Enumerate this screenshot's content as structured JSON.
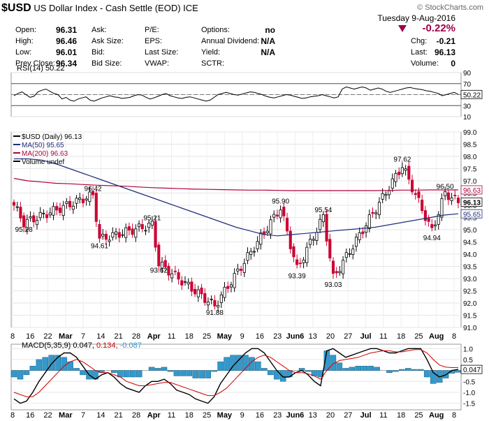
{
  "header": {
    "symbol": "$USD",
    "name": "US Dollar Index - Cash Settle (EOD)",
    "exchange": "ICE",
    "copyright": "© StockCharts.com",
    "date": "Tuesday  9-Aug-2016",
    "change_pct": "-0.22%",
    "quote": [
      {
        "label": "Open:",
        "value": "96.31"
      },
      {
        "label": "High:",
        "value": "96.46"
      },
      {
        "label": "Low:",
        "value": "96.01"
      },
      {
        "label": "Prev Close:",
        "value": "96.34"
      }
    ],
    "quote2": [
      "Ask:",
      "Ask Size:",
      "Bid:",
      "Bid Size:"
    ],
    "quote3": [
      "P/E:",
      "EPS:",
      "Last Size:",
      "VWAP:"
    ],
    "quote4": [
      {
        "label": "Options:",
        "value": "no"
      },
      {
        "label": "Annual Dividend:",
        "value": "N/A"
      },
      {
        "label": "Yield:",
        "value": "N/A"
      },
      {
        "label": "SCTR:",
        "value": ""
      }
    ],
    "quote5": [
      {
        "label": "Chg:",
        "value": "-0.21"
      },
      {
        "label": "Last:",
        "value": "96.13"
      },
      {
        "label": "Volume:",
        "value": "0"
      }
    ]
  },
  "colors": {
    "up": "#000000",
    "down": "#cc0033",
    "ma50": "#1f2d7a",
    "ma200": "#b0003a",
    "macd_hist": "#3399cc"
  },
  "chart_data": [
    {
      "type": "line",
      "name": "RSI(14)",
      "legend": "RSI(14) 50.22",
      "current": "50.22",
      "ylim": [
        10,
        90
      ],
      "ticks": [
        10,
        30,
        50,
        70,
        90
      ],
      "overbought": 70,
      "oversold": 30,
      "values": [
        48,
        52,
        55,
        50,
        45,
        47,
        55,
        58,
        60,
        56,
        52,
        50,
        42,
        45,
        40,
        38,
        42,
        44,
        46,
        40,
        38,
        41,
        44,
        46,
        48,
        46,
        45,
        43,
        44,
        45,
        48,
        50,
        49,
        45,
        42,
        44,
        47,
        50,
        52,
        48,
        46,
        44,
        43,
        45,
        46,
        44,
        42,
        40,
        38,
        40,
        45,
        50,
        52,
        54,
        52,
        50,
        49,
        51,
        53,
        55,
        54,
        52,
        50,
        47,
        45,
        44,
        46,
        48,
        50,
        49,
        47,
        45,
        43,
        44,
        46,
        47,
        48,
        50,
        48,
        46,
        44,
        46,
        60,
        64,
        62,
        60,
        62,
        64,
        62,
        58,
        60,
        62,
        60,
        56,
        54,
        56,
        58,
        60,
        62,
        63,
        61,
        60,
        59,
        57,
        56,
        54,
        52,
        48,
        50,
        52,
        54,
        50.22
      ]
    },
    {
      "type": "candlestick",
      "name": "$USD (Daily)",
      "legend": "$USD (Daily) 96.13",
      "ylim": [
        91,
        99
      ],
      "ticks": [
        91.0,
        91.5,
        92.0,
        92.5,
        93.0,
        93.5,
        94.0,
        94.5,
        95.0,
        95.5,
        96.0,
        96.5,
        97.0,
        97.5,
        98.0,
        98.5,
        99.0
      ],
      "x_labels": [
        "8",
        "16",
        "22",
        "Mar",
        "7",
        "14",
        "21",
        "28",
        "Apr",
        "11",
        "18",
        "25",
        "May",
        "9",
        "16",
        "23",
        "Jun6",
        "13",
        "20",
        "27",
        "Jul",
        "11",
        "18",
        "25",
        "Aug",
        "8"
      ],
      "annotations": [
        {
          "index": 3,
          "value": 95.28,
          "text": "95.28",
          "pos": "below"
        },
        {
          "index": 24,
          "value": 96.42,
          "text": "96.42",
          "pos": "above"
        },
        {
          "index": 26,
          "value": 94.61,
          "text": "94.61",
          "pos": "below"
        },
        {
          "index": 42,
          "value": 95.21,
          "text": "95.21",
          "pos": "above"
        },
        {
          "index": 44,
          "value": 93.62,
          "text": "93.62",
          "pos": "below"
        },
        {
          "index": 61,
          "value": 91.88,
          "text": "91.88",
          "pos": "below"
        },
        {
          "index": 81,
          "value": 95.9,
          "text": "95.90",
          "pos": "above"
        },
        {
          "index": 86,
          "value": 93.39,
          "text": "93.39",
          "pos": "below"
        },
        {
          "index": 94,
          "value": 95.54,
          "text": "95.54",
          "pos": "above"
        },
        {
          "index": 97,
          "value": 93.03,
          "text": "93.03",
          "pos": "below"
        },
        {
          "index": 118,
          "value": 97.62,
          "text": "97.62",
          "pos": "above"
        },
        {
          "index": 127,
          "value": 94.94,
          "text": "94.94",
          "pos": "below"
        },
        {
          "index": 131,
          "value": 96.5,
          "text": "96.50",
          "pos": "above"
        }
      ],
      "ma": [
        {
          "name": "MA(50)",
          "legend": "MA(50) 95.65",
          "current": "95.65",
          "values": [
            97.9,
            97.9,
            97.85,
            97.7,
            97.5,
            97.3,
            97.1,
            96.9,
            96.7,
            96.5,
            96.3,
            96.1,
            95.9,
            95.7,
            95.5,
            95.3,
            95.1,
            94.95,
            94.8,
            94.75,
            94.8,
            94.85,
            94.9,
            94.95,
            95.0,
            95.05,
            95.1,
            95.2,
            95.3,
            95.4,
            95.5,
            95.6,
            95.65
          ]
        },
        {
          "name": "MA(200)",
          "legend": "MA(200) 96.63",
          "current": "96.63",
          "values": [
            97.1,
            97.0,
            96.95,
            96.9,
            96.88,
            96.85,
            96.82,
            96.8,
            96.78,
            96.75,
            96.72,
            96.7,
            96.68,
            96.66,
            96.65,
            96.64,
            96.63,
            96.62,
            96.62,
            96.61,
            96.6,
            96.6,
            96.6,
            96.6,
            96.6,
            96.6,
            96.6,
            96.61,
            96.62,
            96.62,
            96.63,
            96.63,
            96.63
          ]
        }
      ],
      "legend_extra": "Volume undef",
      "last_label": "96.13"
    },
    {
      "type": "macd",
      "name": "MACD(5,35,9)",
      "legend": {
        "label": "MACD(5,35,9)",
        "macd": "0.047",
        "signal": "0.134",
        "hist": "-0.087"
      },
      "ylim": [
        -1.8,
        1.2
      ],
      "ticks": [
        1.0,
        0.5,
        -0.5,
        -1.0,
        -1.5
      ],
      "current_label": "0.047",
      "macd": [
        -1.3,
        -1.5,
        -1.4,
        -1.0,
        -0.5,
        -0.1,
        0.3,
        0.6,
        0.8,
        0.8,
        0.6,
        0.2,
        -0.2,
        -0.4,
        -0.2,
        -0.1,
        -0.3,
        -0.6,
        -0.8,
        -0.9,
        -1.0,
        -0.7,
        -0.5,
        -0.5,
        -0.4,
        -0.6,
        -0.9,
        -1.0,
        -1.1,
        -1.3,
        -1.4,
        -1.5,
        -1.2,
        -0.6,
        -0.2,
        0.2,
        0.5,
        0.8,
        1.0,
        1.0,
        0.8,
        0.4,
        0.0,
        -0.3,
        -0.3,
        -0.1,
        0.0,
        -0.2,
        -0.5,
        -0.7,
        0.9,
        1.0,
        0.8,
        0.6,
        0.7,
        0.8,
        0.9,
        1.0,
        1.0,
        0.9,
        0.8,
        0.8,
        0.9,
        1.0,
        1.0,
        1.0,
        0.5,
        -0.1,
        -0.3,
        -0.2,
        0.0,
        0.047
      ],
      "signal": [
        -1.0,
        -1.1,
        -1.2,
        -1.2,
        -1.0,
        -0.7,
        -0.4,
        -0.1,
        0.2,
        0.4,
        0.5,
        0.4,
        0.2,
        0.0,
        -0.1,
        -0.1,
        -0.2,
        -0.3,
        -0.5,
        -0.6,
        -0.7,
        -0.7,
        -0.65,
        -0.6,
        -0.55,
        -0.55,
        -0.65,
        -0.75,
        -0.85,
        -0.95,
        -1.05,
        -1.15,
        -1.15,
        -1.0,
        -0.8,
        -0.5,
        -0.2,
        0.1,
        0.4,
        0.6,
        0.7,
        0.6,
        0.4,
        0.2,
        0.0,
        -0.1,
        -0.1,
        -0.15,
        -0.25,
        -0.4,
        0.0,
        0.3,
        0.45,
        0.5,
        0.55,
        0.6,
        0.7,
        0.8,
        0.85,
        0.9,
        0.9,
        0.85,
        0.85,
        0.9,
        0.95,
        0.95,
        0.8,
        0.5,
        0.25,
        0.15,
        0.13,
        0.134
      ]
    }
  ]
}
